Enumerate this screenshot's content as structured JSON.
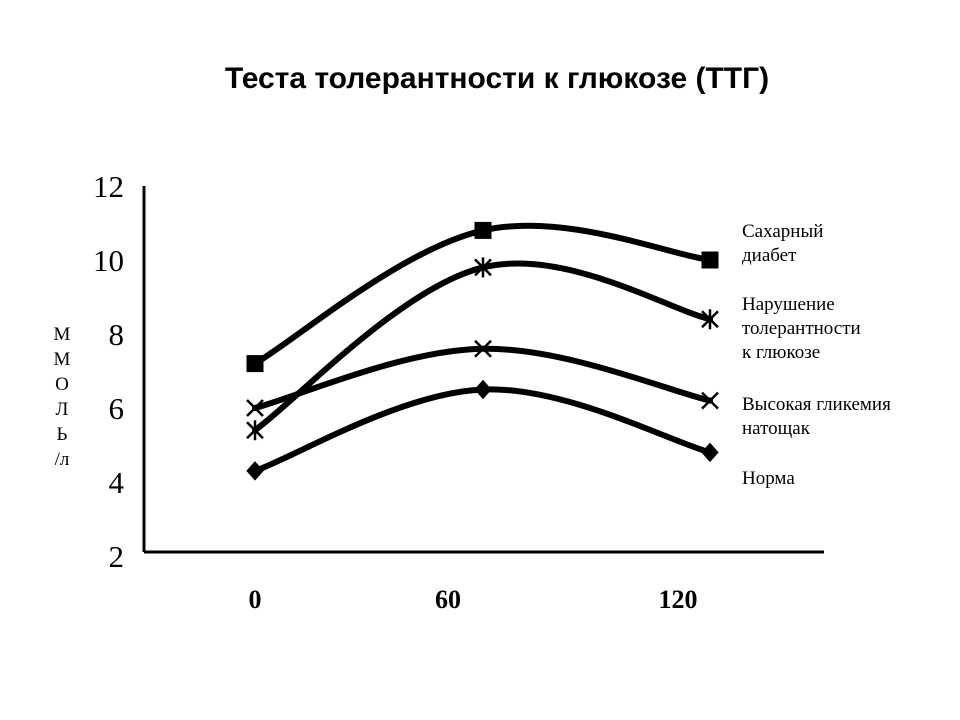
{
  "chart_data": {
    "type": "line",
    "title": "Теста толерантности к глюкозе (ТТГ)",
    "ylabel_chars": [
      "М",
      "М",
      "О",
      "Л",
      "Ь",
      "/л"
    ],
    "xlabel": "",
    "x": [
      0,
      60,
      120
    ],
    "x_tick_labels": [
      "0",
      "60",
      "120"
    ],
    "y_ticks": [
      2,
      4,
      6,
      8,
      10,
      12
    ],
    "ylim": [
      2,
      12
    ],
    "grid": false,
    "legend_position": "right",
    "series": [
      {
        "name": "Сахарный диабет",
        "legend_lines": [
          "Сахарный",
          "диабет"
        ],
        "marker": "square",
        "values": [
          7.2,
          10.8,
          10.0
        ]
      },
      {
        "name": "Нарушение толерантности к глюкозе",
        "legend_lines": [
          "Нарушение",
          "толерантности",
          "к глюкозе"
        ],
        "marker": "asterisk",
        "values": [
          5.4,
          9.8,
          8.4
        ]
      },
      {
        "name": "Высокая гликемия натощак",
        "legend_lines": [
          "Высокая гликемия",
          "натощак"
        ],
        "marker": "x",
        "values": [
          6.0,
          7.6,
          6.2
        ]
      },
      {
        "name": "Норма",
        "legend_lines": [
          "Норма"
        ],
        "marker": "diamond",
        "values": [
          4.3,
          6.5,
          4.8
        ]
      }
    ]
  }
}
